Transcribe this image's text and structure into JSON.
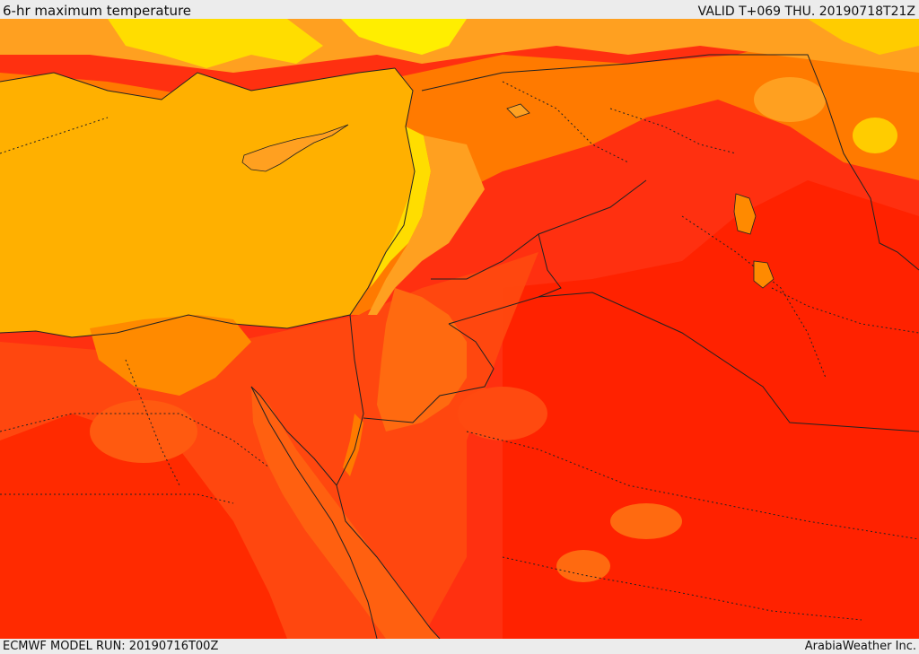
{
  "header": {
    "title": "6-hr maximum temperature",
    "valid": "VALID T+069 THU. 20190718T21Z"
  },
  "footer": {
    "model_run": "ECMWF MODEL RUN: 20190716T00Z",
    "credit": "ArabiaWeather Inc."
  },
  "palette": {
    "sea": "#ffb000",
    "cool_yellow": "#ffee00",
    "light_orange": "#ffa020",
    "orange": "#ff7a00",
    "dark_orange": "#ff5a10",
    "red_orange": "#ff3a10",
    "red": "#ff2200",
    "border_line": "#222222"
  }
}
